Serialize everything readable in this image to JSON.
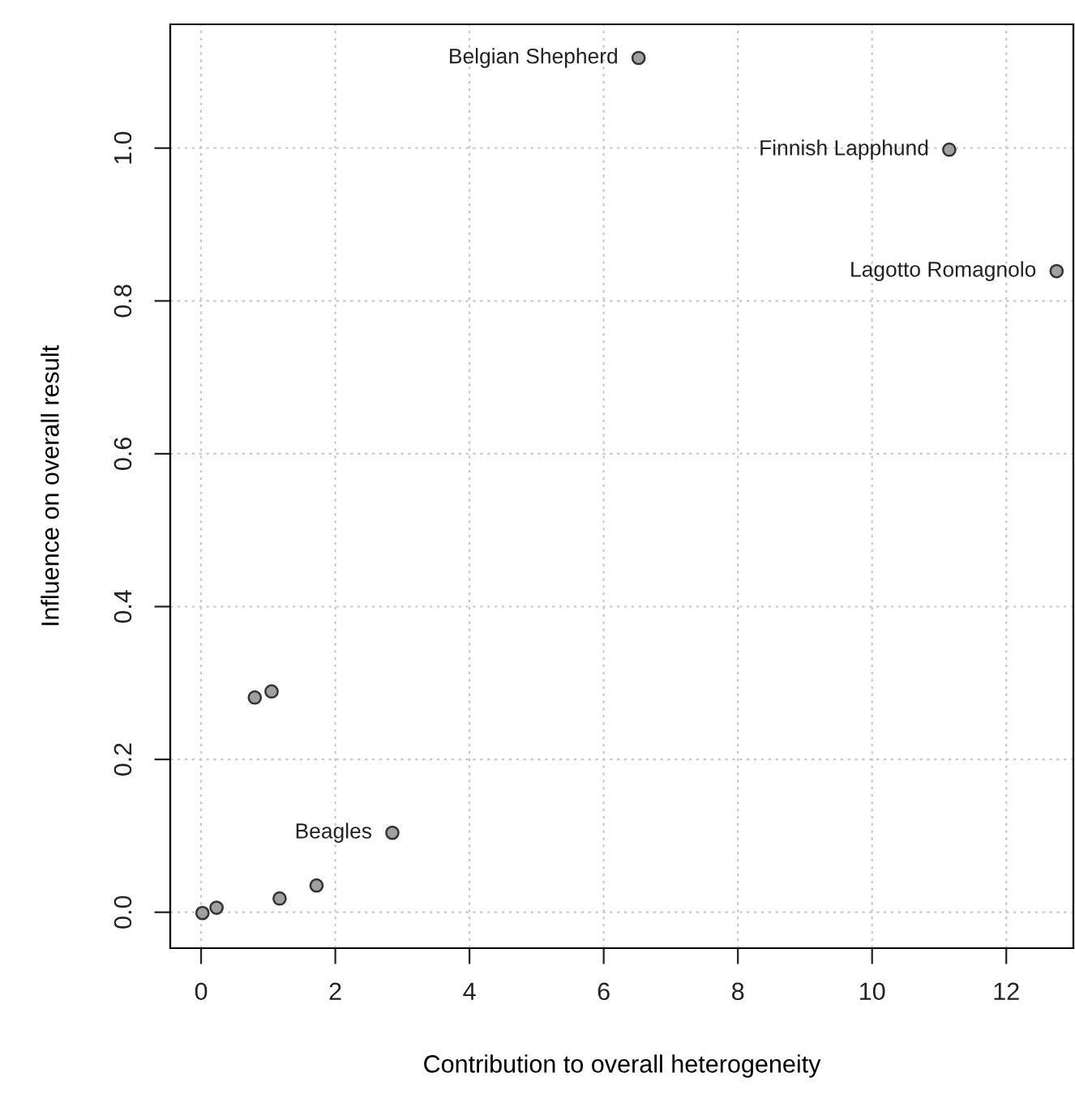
{
  "chart_data": {
    "type": "scatter",
    "xlabel": "Contribution to overall heterogeneity",
    "ylabel": "Influence on overall result",
    "x": [
      6.52,
      11.15,
      12.75,
      2.85,
      1.05,
      0.8,
      1.72,
      1.17,
      0.23,
      0.02
    ],
    "series": [
      {
        "color": "#a0a0a0",
        "values": [
          1.118,
          0.998,
          0.839,
          0.104,
          0.289,
          0.281,
          0.035,
          0.018,
          0.006,
          -0.001
        ]
      }
    ],
    "xlim": [
      -0.46,
      13.0
    ],
    "ylim": [
      -0.047,
      1.162
    ],
    "xticks": [
      0,
      2,
      4,
      6,
      8,
      10,
      12
    ],
    "yticks": [
      {
        "value": 0,
        "label": "0.0"
      },
      {
        "value": 0.2,
        "label": "0.2"
      },
      {
        "value": 0.4,
        "label": "0.4"
      },
      {
        "value": 0.6,
        "label": "0.6"
      },
      {
        "value": 0.8,
        "label": "0.8"
      },
      {
        "value": 1.0,
        "label": "1.0"
      }
    ],
    "grid": true,
    "marker": "circle",
    "annotations": [
      {
        "text": "Belgian Shepherd",
        "x": 6.52,
        "y": 1.118
      },
      {
        "text": "Finnish Lapphund",
        "x": 11.15,
        "y": 0.998
      },
      {
        "text": "Lagotto Romagnolo",
        "x": 12.75,
        "y": 0.839
      },
      {
        "text": "Beagles",
        "x": 2.85,
        "y": 0.104
      }
    ]
  }
}
